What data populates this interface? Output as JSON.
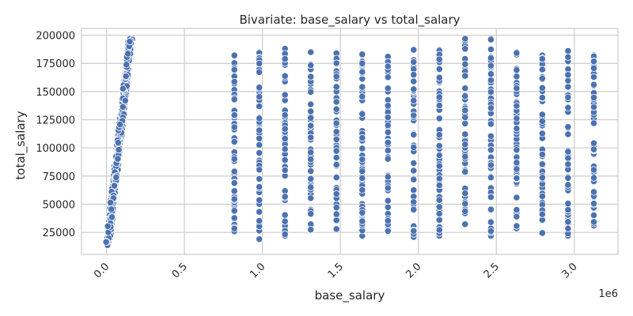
{
  "chart_data": {
    "type": "scatter",
    "title": "Bivariate: base_salary vs total_salary",
    "xlabel": "base_salary",
    "ylabel": "total_salary",
    "x_offset_label": "1e6",
    "x_scale": 1000000,
    "xlim": [
      -160000,
      3280000
    ],
    "ylim": [
      5500,
      206000
    ],
    "grid": true,
    "legend": false,
    "x_tick_labels": [
      "0.0",
      "0.5",
      "1.0",
      "1.5",
      "2.0",
      "2.5",
      "3.0"
    ],
    "x_tick_values": [
      0,
      500000,
      1000000,
      1500000,
      2000000,
      2500000,
      3000000
    ],
    "y_tick_labels": [
      "25000",
      "50000",
      "75000",
      "100000",
      "125000",
      "150000",
      "175000",
      "200000"
    ],
    "y_tick_values": [
      25000,
      50000,
      75000,
      100000,
      125000,
      150000,
      175000,
      200000
    ],
    "marker_color": "#4c72b0",
    "marker_edge_color": "#ffffff",
    "points_per_column_approx": 55,
    "correlated_cluster": {
      "x_range": [
        7000,
        155000
      ],
      "y_range": [
        13000,
        198000
      ],
      "points_approx": 420
    },
    "columns": [
      {
        "x": 820000,
        "y_min": 26000,
        "y_max": 182000
      },
      {
        "x": 980000,
        "y_min": 19000,
        "y_max": 185000
      },
      {
        "x": 1145000,
        "y_min": 22000,
        "y_max": 188000
      },
      {
        "x": 1310000,
        "y_min": 27000,
        "y_max": 185000
      },
      {
        "x": 1475000,
        "y_min": 28000,
        "y_max": 184000
      },
      {
        "x": 1640000,
        "y_min": 22000,
        "y_max": 183000
      },
      {
        "x": 1805000,
        "y_min": 25000,
        "y_max": 181000
      },
      {
        "x": 1970000,
        "y_min": 21000,
        "y_max": 187000
      },
      {
        "x": 2135000,
        "y_min": 22000,
        "y_max": 187000
      },
      {
        "x": 2300000,
        "y_min": 32000,
        "y_max": 197000
      },
      {
        "x": 2465000,
        "y_min": 22000,
        "y_max": 197000
      },
      {
        "x": 2630000,
        "y_min": 28000,
        "y_max": 185000
      },
      {
        "x": 2795000,
        "y_min": 24000,
        "y_max": 182000
      },
      {
        "x": 2960000,
        "y_min": 22000,
        "y_max": 186000
      },
      {
        "x": 3125000,
        "y_min": 31000,
        "y_max": 182000
      }
    ]
  }
}
